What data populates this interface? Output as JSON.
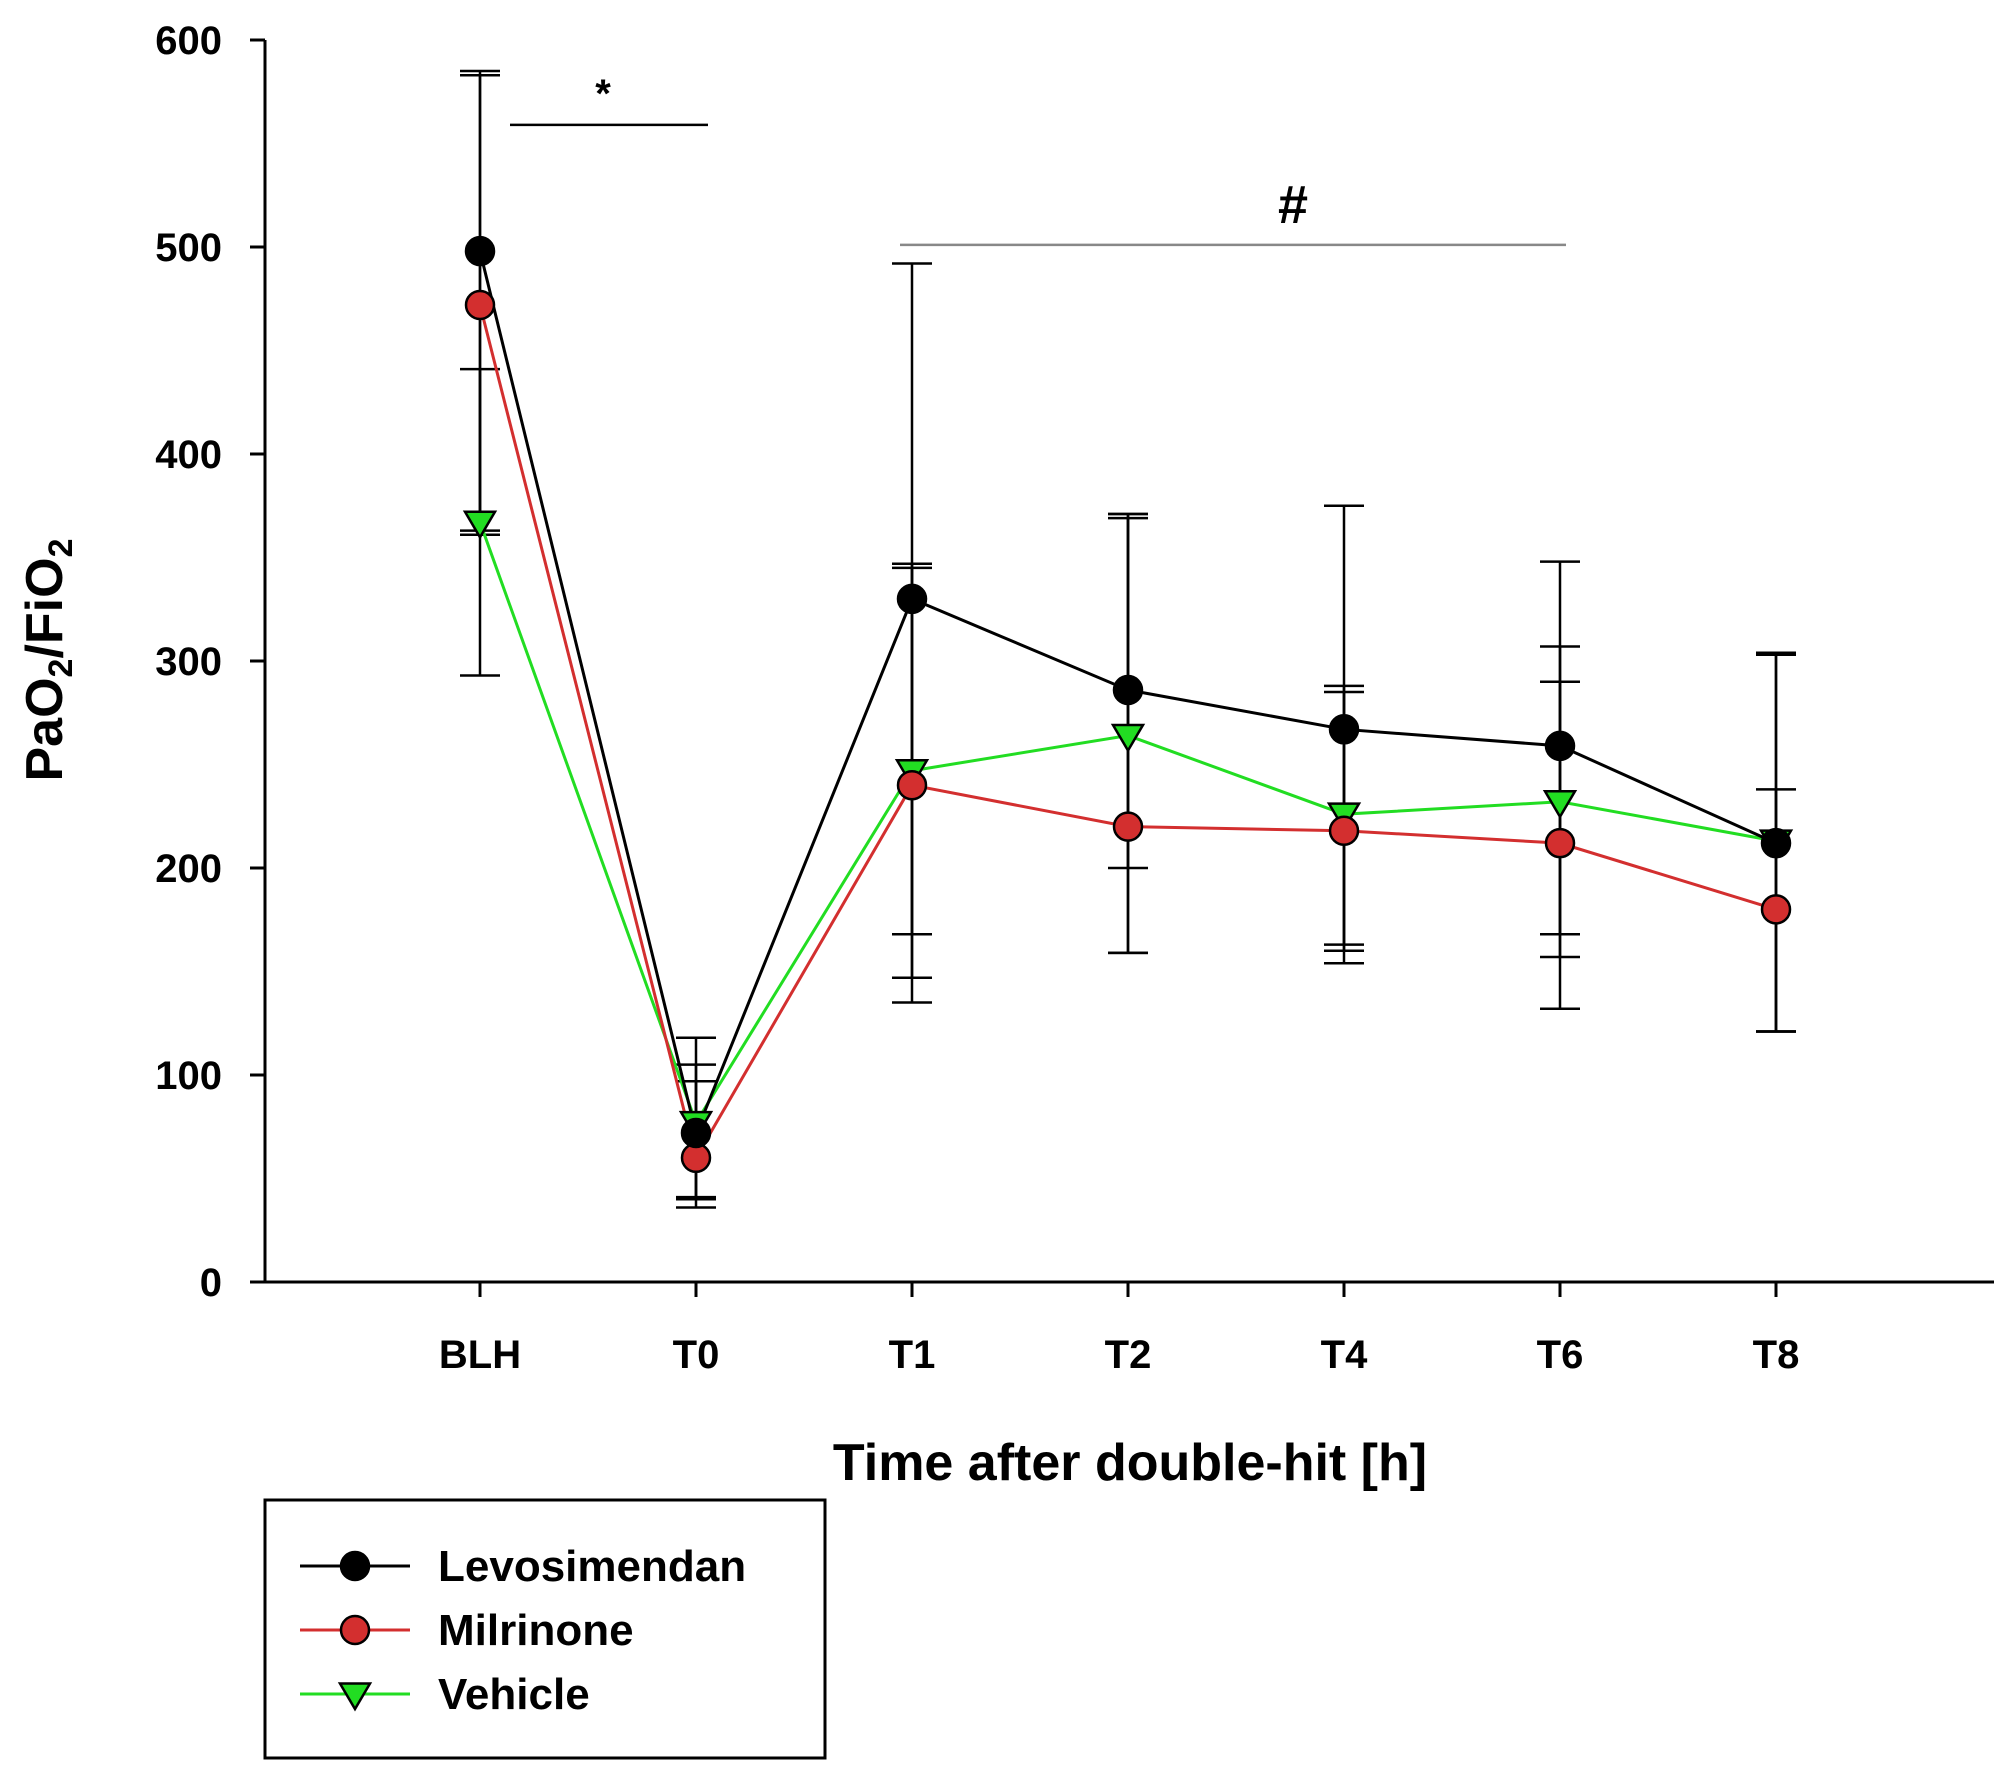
{
  "chart_data": {
    "type": "line",
    "categories": [
      "BLH",
      "T0",
      "T1",
      "T2",
      "T4",
      "T6",
      "T8"
    ],
    "xlabel": "Time after double-hit [h]",
    "ylabel": {
      "parts": [
        {
          "text": "PaO",
          "sub": false
        },
        {
          "text": "2",
          "sub": true
        },
        {
          "text": "/FiO",
          "sub": false
        },
        {
          "text": "2",
          "sub": true
        }
      ]
    },
    "ylim": [
      0,
      600
    ],
    "yticks": [
      0,
      100,
      200,
      300,
      400,
      500,
      600
    ],
    "grid": false,
    "legend_position": "bottom-left",
    "series": [
      {
        "name": "Levosimendan",
        "color": "#000000",
        "marker": "circle",
        "values": [
          498,
          72,
          330,
          286,
          267,
          259,
          212
        ],
        "error_upper": [
          585,
          105,
          492,
          371,
          375,
          348,
          304
        ],
        "error_lower": [
          363,
          40,
          168,
          200,
          160,
          168,
          121
        ]
      },
      {
        "name": "Milrinone",
        "color": "#d32f2f",
        "marker": "circle",
        "values": [
          472,
          60,
          240,
          220,
          218,
          212,
          180
        ],
        "error_upper": [
          583,
          97,
          345,
          371,
          285,
          307,
          303
        ],
        "error_lower": [
          361,
          36,
          135,
          159,
          154,
          157,
          121
        ]
      },
      {
        "name": "Vehicle",
        "color": "#22dd22",
        "marker": "triangle-down",
        "values": [
          367,
          77,
          247,
          264,
          226,
          232,
          213
        ],
        "error_upper": [
          441,
          118,
          347,
          369,
          288,
          290,
          238
        ],
        "error_lower": [
          293,
          41,
          147,
          159,
          163,
          132,
          121
        ]
      }
    ],
    "annotations": [
      {
        "label": "*",
        "from": "BLH",
        "to": "T0",
        "y": 559
      },
      {
        "label": "#",
        "from": "T1",
        "to": "T6",
        "y": 501
      }
    ]
  }
}
